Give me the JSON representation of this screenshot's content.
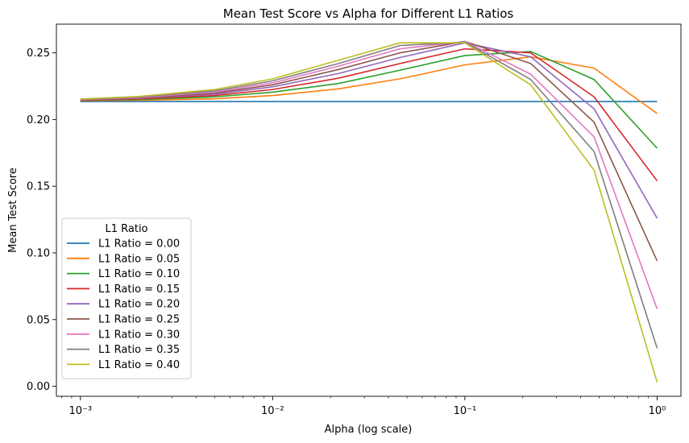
{
  "chart_data": {
    "type": "line",
    "title": "Mean Test Score vs Alpha for Different L1 Ratios",
    "xlabel": "Alpha (log scale)",
    "ylabel": "Mean Test Score",
    "xscale": "log",
    "xlim": [
      0.00075,
      1.33
    ],
    "ylim": [
      -0.0075,
      0.2715
    ],
    "grid": false,
    "legend_title": "L1 Ratio",
    "legend_position": "lower-left",
    "x": [
      0.001,
      0.002,
      0.005,
      0.01,
      0.022,
      0.046,
      0.1,
      0.22,
      0.47,
      1.0
    ],
    "x_ticks": [
      {
        "value": 0.001,
        "label": "10⁻³"
      },
      {
        "value": 0.01,
        "label": "10⁻²"
      },
      {
        "value": 0.1,
        "label": "10⁻¹"
      },
      {
        "value": 1.0,
        "label": "10⁰"
      }
    ],
    "y_ticks": [
      {
        "value": 0.0,
        "label": "0.00"
      },
      {
        "value": 0.05,
        "label": "0.05"
      },
      {
        "value": 0.1,
        "label": "0.10"
      },
      {
        "value": 0.15,
        "label": "0.15"
      },
      {
        "value": 0.2,
        "label": "0.20"
      },
      {
        "value": 0.25,
        "label": "0.25"
      }
    ],
    "series": [
      {
        "name": "L1 Ratio = 0.00",
        "color": "#1f77b4",
        "values": [
          0.2135,
          0.2135,
          0.2135,
          0.2135,
          0.2135,
          0.2135,
          0.2135,
          0.2135,
          0.2135,
          0.2135
        ]
      },
      {
        "name": "L1 Ratio = 0.05",
        "color": "#ff7f0e",
        "values": [
          0.214,
          0.2145,
          0.2155,
          0.218,
          0.223,
          0.2305,
          0.241,
          0.247,
          0.2385,
          0.2045
        ]
      },
      {
        "name": "L1 Ratio = 0.10",
        "color": "#2ca02c",
        "values": [
          0.2142,
          0.215,
          0.217,
          0.2205,
          0.227,
          0.237,
          0.248,
          0.251,
          0.23,
          0.1785
        ]
      },
      {
        "name": "L1 Ratio = 0.15",
        "color": "#d62728",
        "values": [
          0.2144,
          0.2155,
          0.218,
          0.2225,
          0.231,
          0.242,
          0.253,
          0.25,
          0.217,
          0.154
        ]
      },
      {
        "name": "L1 Ratio = 0.20",
        "color": "#9467bd",
        "values": [
          0.2146,
          0.216,
          0.219,
          0.2245,
          0.2345,
          0.2465,
          0.2575,
          0.247,
          0.208,
          0.126
        ]
      },
      {
        "name": "L1 Ratio = 0.25",
        "color": "#8c564b",
        "values": [
          0.2148,
          0.2163,
          0.2198,
          0.226,
          0.2375,
          0.25,
          0.2585,
          0.242,
          0.198,
          0.094
        ]
      },
      {
        "name": "L1 Ratio = 0.30",
        "color": "#e377c2",
        "values": [
          0.215,
          0.2166,
          0.2206,
          0.2275,
          0.24,
          0.253,
          0.2585,
          0.234,
          0.187,
          0.058
        ]
      },
      {
        "name": "L1 Ratio = 0.35",
        "color": "#7f7f7f",
        "values": [
          0.2152,
          0.217,
          0.2215,
          0.229,
          0.242,
          0.2555,
          0.258,
          0.23,
          0.176,
          0.0285
        ]
      },
      {
        "name": "L1 Ratio = 0.40",
        "color": "#bcbd22",
        "values": [
          0.2154,
          0.2173,
          0.2225,
          0.2305,
          0.2445,
          0.2575,
          0.2575,
          0.226,
          0.162,
          0.003
        ]
      }
    ]
  }
}
